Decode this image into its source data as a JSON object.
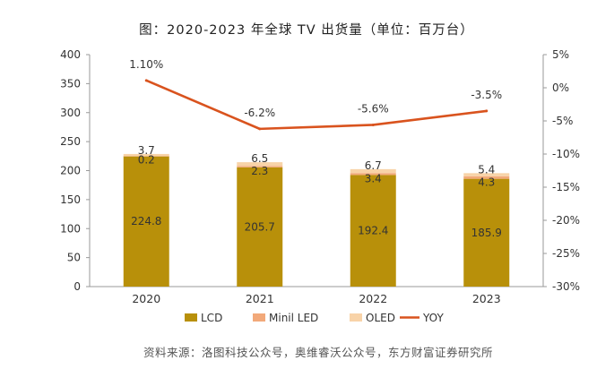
{
  "chart_data": {
    "type": "bar",
    "title": "图：2020-2023 年全球 TV 出货量（单位：百万台）",
    "categories": [
      "2020",
      "2021",
      "2022",
      "2023"
    ],
    "series": [
      {
        "name": "LCD",
        "kind": "bar",
        "axis": "left",
        "color": "#B8900A",
        "values": [
          224.8,
          205.7,
          192.4,
          185.9
        ],
        "labels": [
          "224.8",
          "205.7",
          "192.4",
          "185.9"
        ]
      },
      {
        "name": "Minil LED",
        "kind": "bar",
        "axis": "left",
        "color": "#F2A97A",
        "values": [
          0.2,
          2.3,
          3.4,
          4.3
        ],
        "labels": [
          "0.2",
          "2.3",
          "3.4",
          "4.3"
        ]
      },
      {
        "name": "OLED",
        "kind": "bar",
        "axis": "left",
        "color": "#F8D3A8",
        "values": [
          3.7,
          6.5,
          6.7,
          5.4
        ],
        "labels": [
          "3.7",
          "6.5",
          "6.7",
          "5.4"
        ]
      },
      {
        "name": "YOY",
        "kind": "line",
        "axis": "right",
        "color": "#D9531E",
        "values": [
          1.1,
          -6.2,
          -5.6,
          -3.5
        ],
        "labels": [
          "1.10%",
          "-6.2%",
          "-5.6%",
          "-3.5%"
        ]
      }
    ],
    "left_axis": {
      "ylim": [
        0,
        400
      ],
      "ticks": [
        0,
        50,
        100,
        150,
        200,
        250,
        300,
        350,
        400
      ],
      "tick_labels": [
        "0",
        "50",
        "100",
        "150",
        "200",
        "250",
        "300",
        "350",
        "400"
      ]
    },
    "right_axis": {
      "ylim": [
        -30,
        5
      ],
      "ticks": [
        5,
        0,
        -5,
        -10,
        -15,
        -20,
        -25,
        -30
      ],
      "tick_labels": [
        "5%",
        "0%",
        "-5%",
        "-10%",
        "-15%",
        "-20%",
        "-25%",
        "-30%"
      ]
    },
    "legend_position": "bottom",
    "grid": false
  },
  "source_text": "资料来源：洛图科技公众号，奥维睿沃公众号，东方财富证券研究所"
}
